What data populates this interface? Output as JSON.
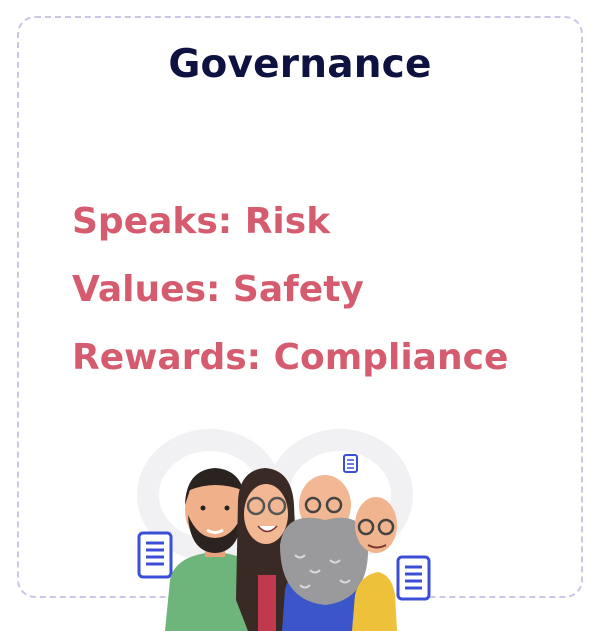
{
  "card": {
    "title": "Governance",
    "points": [
      "Speaks: Risk",
      "Values: Safety",
      "Rewards: Compliance"
    ]
  },
  "colors": {
    "title": "#0d1240",
    "points": "#d55c6f",
    "border": "#c9c7e6"
  },
  "illustration": {
    "icons": [
      "document-icon",
      "document-icon",
      "document-icon"
    ]
  }
}
